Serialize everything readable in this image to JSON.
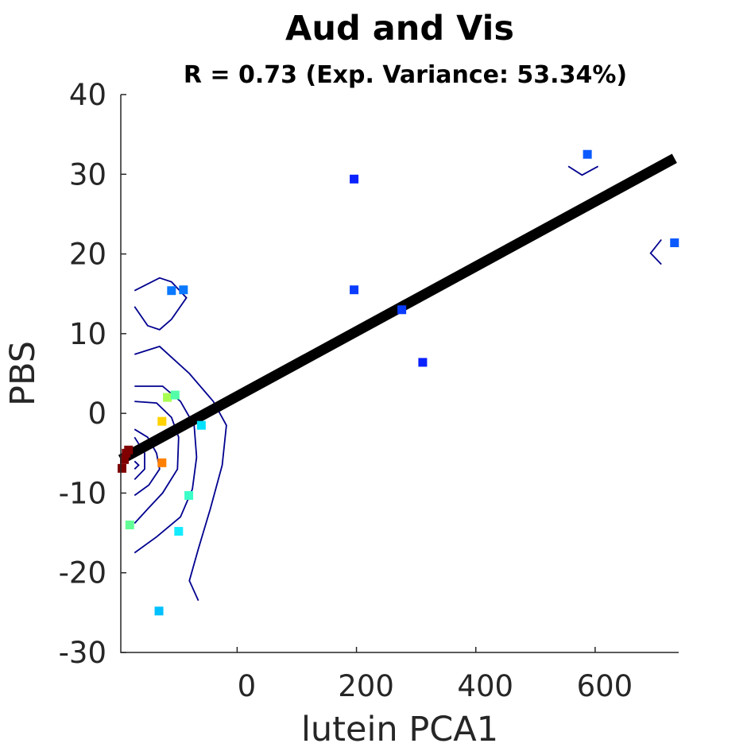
{
  "chart_data": {
    "type": "scatter",
    "title": "Aud and Vis",
    "subtitle": "R = 0.73 (Exp. Variance: 53.34%)",
    "xlabel": "lutein PCA1",
    "ylabel": "PBS",
    "xlim": [
      -195,
      740
    ],
    "ylim": [
      -30,
      40
    ],
    "x_ticks": [
      {
        "value": 0,
        "label": "0"
      },
      {
        "value": 200,
        "label": "200"
      },
      {
        "value": 400,
        "label": "400"
      },
      {
        "value": 600,
        "label": "600"
      }
    ],
    "y_ticks": [
      {
        "value": -30,
        "label": "-30"
      },
      {
        "value": -20,
        "label": "-20"
      },
      {
        "value": -10,
        "label": "-10"
      },
      {
        "value": 0,
        "label": "0"
      },
      {
        "value": 10,
        "label": "10"
      },
      {
        "value": 20,
        "label": "20"
      },
      {
        "value": 30,
        "label": "30"
      },
      {
        "value": 40,
        "label": "40"
      }
    ],
    "grid": false,
    "points": [
      {
        "x": 196,
        "y": 29.4,
        "color": "#0a22ff"
      },
      {
        "x": 196,
        "y": 15.5,
        "color": "#0a3cff"
      },
      {
        "x": 276,
        "y": 13.0,
        "color": "#0a3cff"
      },
      {
        "x": 311,
        "y": 6.4,
        "color": "#0a22ff"
      },
      {
        "x": 587,
        "y": 32.5,
        "color": "#0a5aff"
      },
      {
        "x": 733,
        "y": 21.4,
        "color": "#0a5aff"
      },
      {
        "x": -110,
        "y": 15.4,
        "color": "#0a78ff"
      },
      {
        "x": -90,
        "y": 15.5,
        "color": "#0a78ff"
      },
      {
        "x": -117,
        "y": 2.0,
        "color": "#a8ff52"
      },
      {
        "x": -104,
        "y": 2.3,
        "color": "#52ffa8"
      },
      {
        "x": -126,
        "y": -1.0,
        "color": "#ffd200"
      },
      {
        "x": -60,
        "y": -1.5,
        "color": "#00e0ff"
      },
      {
        "x": -126,
        "y": -6.2,
        "color": "#ff8000"
      },
      {
        "x": -182,
        "y": -4.6,
        "color": "#800000"
      },
      {
        "x": -186,
        "y": -5.0,
        "color": "#800000"
      },
      {
        "x": -189,
        "y": -5.8,
        "color": "#800000"
      },
      {
        "x": -193,
        "y": -6.9,
        "color": "#800000"
      },
      {
        "x": -81,
        "y": -10.3,
        "color": "#3cffc8"
      },
      {
        "x": -180,
        "y": -14.0,
        "color": "#64ff96"
      },
      {
        "x": -98,
        "y": -14.8,
        "color": "#14ebff"
      },
      {
        "x": -131,
        "y": -24.8,
        "color": "#00c0ff"
      }
    ],
    "fit_line": {
      "x": [
        -195,
        733
      ],
      "y": [
        -5.8,
        32.0
      ],
      "color": "#000000"
    },
    "contours": [
      [
        [
          -172,
          15.4
        ],
        [
          -130,
          17.0
        ],
        [
          -110,
          16.5
        ],
        [
          -85,
          14.5
        ],
        [
          -110,
          11.8
        ],
        [
          -130,
          10.5
        ],
        [
          -150,
          11.0
        ],
        [
          -172,
          13.4
        ]
      ],
      [
        [
          -172,
          7.4
        ],
        [
          -130,
          8.4
        ],
        [
          -80,
          5.0
        ],
        [
          -40,
          1.5
        ],
        [
          -18,
          -1.5
        ],
        [
          -25,
          -6.5
        ],
        [
          -45,
          -12.0
        ],
        [
          -65,
          -17.0
        ],
        [
          -80,
          -21.0
        ],
        [
          -65,
          -23.5
        ]
      ],
      [
        [
          -172,
          3.4
        ],
        [
          -125,
          3.4
        ],
        [
          -95,
          1.5
        ],
        [
          -72,
          -1.5
        ],
        [
          -68,
          -5.5
        ],
        [
          -75,
          -9.5
        ],
        [
          -95,
          -13.0
        ],
        [
          -135,
          -15.5
        ],
        [
          -172,
          -17.5
        ]
      ],
      [
        [
          -172,
          1.5
        ],
        [
          -135,
          1.3
        ],
        [
          -110,
          -0.5
        ],
        [
          -98,
          -3.0
        ],
        [
          -100,
          -7.0
        ],
        [
          -125,
          -10.0
        ],
        [
          -150,
          -12.0
        ],
        [
          -172,
          -13.8
        ]
      ],
      [
        [
          -172,
          -2.0
        ],
        [
          -150,
          -3.0
        ],
        [
          -135,
          -5.0
        ],
        [
          -130,
          -7.0
        ],
        [
          -148,
          -9.0
        ],
        [
          -172,
          -10.3
        ]
      ],
      [
        [
          -172,
          -3.0
        ],
        [
          -155,
          -5.0
        ],
        [
          -155,
          -7.0
        ],
        [
          -172,
          -8.3
        ]
      ],
      [
        [
          -172,
          -6.0
        ],
        [
          -165,
          -6.5
        ],
        [
          -172,
          -7.0
        ]
      ],
      [
        [
          555,
          31.0
        ],
        [
          578,
          29.9
        ],
        [
          605,
          31.0
        ]
      ],
      [
        [
          711,
          21.8
        ],
        [
          693,
          20.1
        ],
        [
          711,
          18.7
        ]
      ]
    ]
  }
}
